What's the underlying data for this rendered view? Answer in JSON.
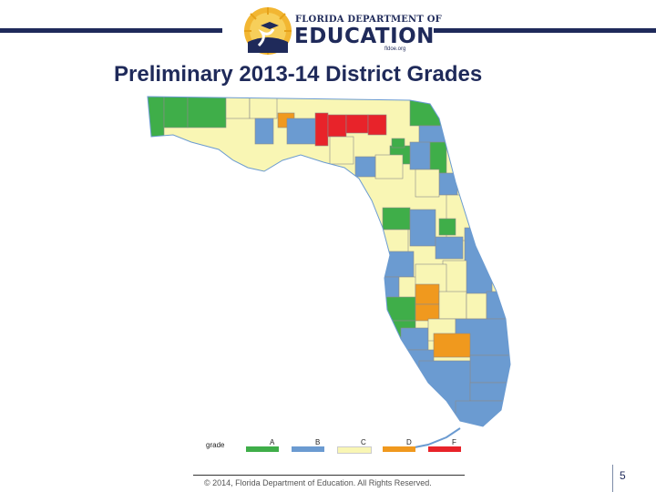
{
  "header": {
    "logo_top_text": "FLORIDA DEPARTMENT OF",
    "logo_main_text": "EDUCATION",
    "logo_url": "fldoe.org"
  },
  "title": "Preliminary 2013-14 District Grades",
  "legend": {
    "title": "grade",
    "items": [
      {
        "label": "A",
        "color": "#3fae49"
      },
      {
        "label": "B",
        "color": "#6b9bd1"
      },
      {
        "label": "C",
        "color": "#f9f6b4"
      },
      {
        "label": "D",
        "color": "#f0991e"
      },
      {
        "label": "F",
        "color": "#e8232a"
      }
    ]
  },
  "map": {
    "grade_colors": {
      "A": "#3fae49",
      "B": "#6b9bd1",
      "C": "#f9f6b4",
      "D": "#f0991e",
      "F": "#e8232a"
    }
  },
  "footer": {
    "copyright": "© 2014, Florida Department of Education. All Rights Reserved.",
    "page_number": "5"
  }
}
